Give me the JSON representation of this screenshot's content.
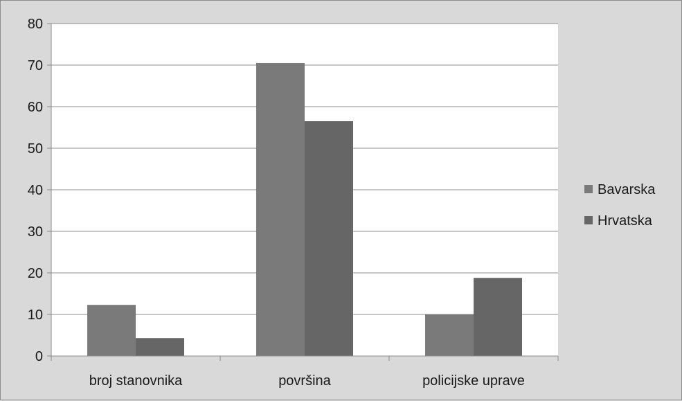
{
  "chart_data": {
    "type": "bar",
    "categories": [
      "broj stanovnika",
      "površina",
      "policijske uprave"
    ],
    "series": [
      {
        "name": "Bavarska",
        "values": [
          12.3,
          70.5,
          10.0
        ],
        "color": "#7a7a7a"
      },
      {
        "name": "Hrvatska",
        "values": [
          4.3,
          56.5,
          18.8
        ],
        "color": "#666666"
      }
    ],
    "ylim": [
      0,
      80
    ],
    "yticks": [
      0,
      10,
      20,
      30,
      40,
      50,
      60,
      70,
      80
    ],
    "grid": true,
    "legend": "right",
    "colors": {
      "plot_background": "#ffffff",
      "chart_background": "#d9d9d9",
      "gridline": "#8c8c8c",
      "axis": "#8c8c8c"
    }
  }
}
